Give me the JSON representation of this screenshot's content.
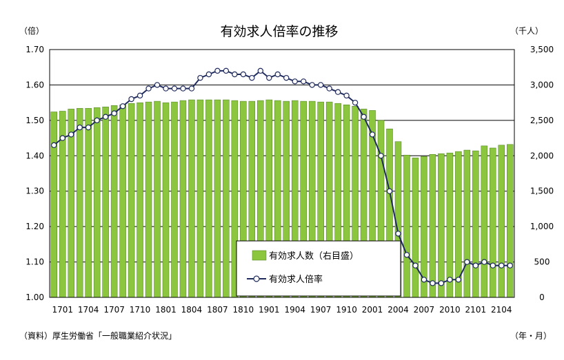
{
  "chart_data": {
    "type": "bar+line",
    "title": "有効求人倍率の推移",
    "left_unit": "（倍）",
    "right_unit": "（千人）",
    "x_unit": "（年・月）",
    "source": "（資料）厚生労働省「一般職業紹介状況」",
    "left_axis": {
      "min": 1.0,
      "max": 1.7,
      "ticks": [
        "1.00",
        "1.10",
        "1.20",
        "1.30",
        "1.40",
        "1.50",
        "1.60",
        "1.70"
      ]
    },
    "right_axis": {
      "min": 0,
      "max": 3500,
      "ticks": [
        "0",
        "500",
        "1,000",
        "1,500",
        "2,000",
        "2,500",
        "3,000",
        "3,500"
      ]
    },
    "x_tick_labels": [
      "1701",
      "1704",
      "1707",
      "1710",
      "1801",
      "1804",
      "1807",
      "1810",
      "1901",
      "1904",
      "1907",
      "1910",
      "2001",
      "2004",
      "2007",
      "2010",
      "2101",
      "2104"
    ],
    "categories": [
      "1701",
      "1702",
      "1703",
      "1704",
      "1705",
      "1706",
      "1707",
      "1708",
      "1709",
      "1710",
      "1711",
      "1712",
      "1801",
      "1802",
      "1803",
      "1804",
      "1805",
      "1806",
      "1807",
      "1808",
      "1809",
      "1810",
      "1811",
      "1812",
      "1901",
      "1902",
      "1903",
      "1904",
      "1905",
      "1906",
      "1907",
      "1908",
      "1909",
      "1910",
      "1911",
      "1912",
      "2001",
      "2002",
      "2003",
      "2004",
      "2005",
      "2006",
      "2007",
      "2008",
      "2009",
      "2010",
      "2011",
      "2012",
      "2101",
      "2102",
      "2103",
      "2104",
      "2105",
      "2106"
    ],
    "series": [
      {
        "name": "有効求人数（右目盛）",
        "axis": "right",
        "color": "#8cc63f",
        "values": [
          2620,
          2630,
          2660,
          2670,
          2670,
          2680,
          2690,
          2710,
          2720,
          2740,
          2750,
          2760,
          2770,
          2750,
          2760,
          2780,
          2790,
          2790,
          2790,
          2790,
          2790,
          2780,
          2770,
          2770,
          2780,
          2790,
          2780,
          2770,
          2780,
          2770,
          2770,
          2760,
          2760,
          2740,
          2720,
          2700,
          2660,
          2640,
          2500,
          2380,
          2200,
          2010,
          1970,
          1990,
          2020,
          2030,
          2040,
          2060,
          2080,
          2070,
          2140,
          2110,
          2150,
          2160
        ]
      },
      {
        "name": "有効求人倍率",
        "axis": "left",
        "color": "#1f2a5c",
        "values": [
          1.43,
          1.45,
          1.46,
          1.48,
          1.48,
          1.5,
          1.51,
          1.52,
          1.54,
          1.56,
          1.57,
          1.59,
          1.6,
          1.59,
          1.59,
          1.59,
          1.59,
          1.62,
          1.63,
          1.64,
          1.64,
          1.63,
          1.63,
          1.62,
          1.64,
          1.62,
          1.63,
          1.62,
          1.61,
          1.61,
          1.6,
          1.6,
          1.59,
          1.58,
          1.57,
          1.55,
          1.51,
          1.46,
          1.4,
          1.3,
          1.18,
          1.12,
          1.09,
          1.05,
          1.04,
          1.04,
          1.05,
          1.05,
          1.1,
          1.09,
          1.1,
          1.09,
          1.09,
          1.09
        ]
      }
    ],
    "legend_position": "bottom-center",
    "grid": true
  }
}
